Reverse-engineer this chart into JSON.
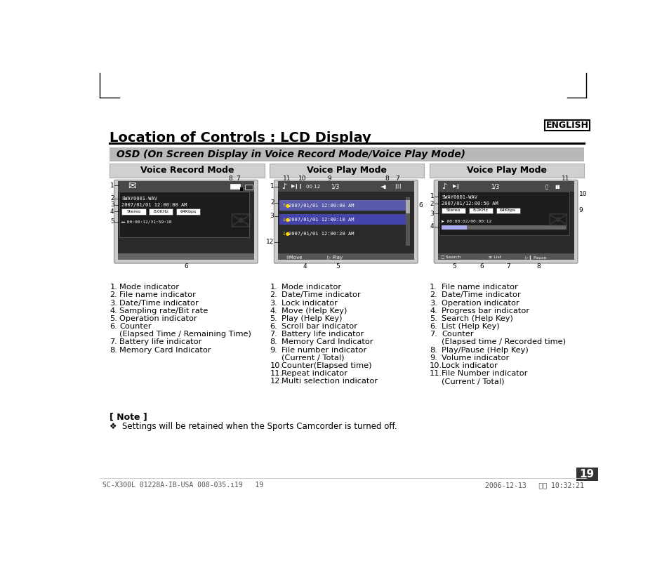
{
  "page_bg": "#ffffff",
  "english_label": "ENGLISH",
  "main_title": "Location of Controls : LCD Display",
  "osd_title": "OSD (On Screen Display in Voice Record Mode/Voice Play Mode)",
  "osd_bg": "#b8b8b8",
  "panel_bg": "#d0d0d0",
  "panel_titles": [
    "Voice Record Mode",
    "Voice Play Mode",
    "Voice Play Mode"
  ],
  "note_title": "[ Note ]",
  "note_text": "❖  Settings will be retained when the Sports Camcorder is turned off.",
  "page_number": "19",
  "footer_left": "SC-X300L 01228A-IB-USA 008-035.i19   19",
  "footer_right": "2006-12-13   오전 10:32:21",
  "col1_items": [
    [
      "1.",
      "Mode indicator"
    ],
    [
      "2.",
      "File name indicator"
    ],
    [
      "3.",
      "Date/Time indicator"
    ],
    [
      "4.",
      "Sampling rate/Bit rate"
    ],
    [
      "5.",
      "Operation indicator"
    ],
    [
      "6.",
      "Counter"
    ],
    [
      "",
      "(Elapsed Time / Remaining Time)"
    ],
    [
      "7.",
      "Battery life indicator"
    ],
    [
      "8.",
      "Memory Card Indicator"
    ]
  ],
  "col2_items": [
    [
      "1.",
      "Mode indicator"
    ],
    [
      "2.",
      "Date/Time indicator"
    ],
    [
      "3.",
      "Lock indicator"
    ],
    [
      "4.",
      "Move (Help Key)"
    ],
    [
      "5.",
      "Play (Help Key)"
    ],
    [
      "6.",
      "Scroll bar indicator"
    ],
    [
      "7.",
      "Battery life indicator"
    ],
    [
      "8.",
      "Memory Card Indicator"
    ],
    [
      "9.",
      "File number indicator"
    ],
    [
      "",
      "(Current / Total)"
    ],
    [
      "10.",
      "Counter(Elapsed time)"
    ],
    [
      "11.",
      "Repeat indicator"
    ],
    [
      "12.",
      "Multi selection indicator"
    ]
  ],
  "col3_items": [
    [
      "1.",
      "File name indicator"
    ],
    [
      "2.",
      "Date/Time indicator"
    ],
    [
      "3.",
      "Operation indicator"
    ],
    [
      "4.",
      "Progress bar indicator"
    ],
    [
      "5.",
      "Search (Help Key)"
    ],
    [
      "6.",
      "List (Help Key)"
    ],
    [
      "7.",
      "Counter"
    ],
    [
      "",
      "(Elapsed time / Recorded time)"
    ],
    [
      "8.",
      "Play/Pause (Help Key)"
    ],
    [
      "9.",
      "Volume indicator"
    ],
    [
      "10.",
      "Lock indicator"
    ],
    [
      "11.",
      "File Number indicator"
    ],
    [
      "",
      "(Current / Total)"
    ]
  ]
}
